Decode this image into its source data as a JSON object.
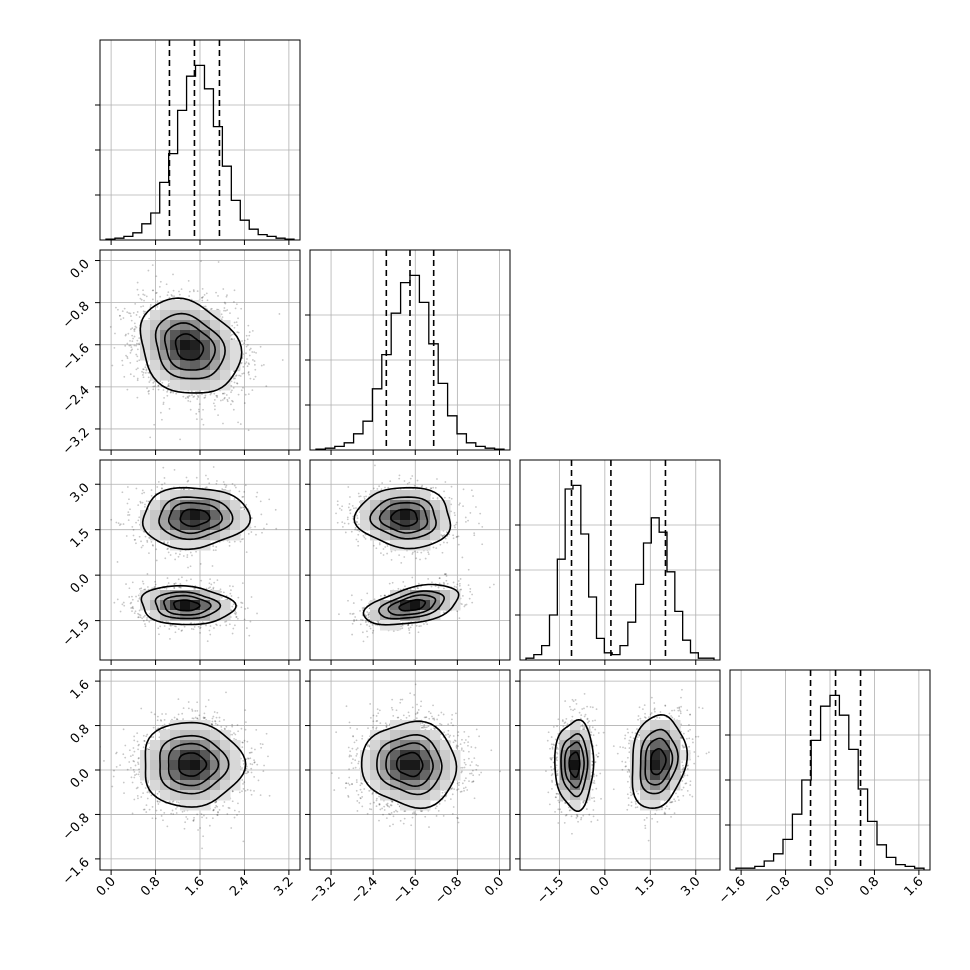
{
  "chart_data": {
    "type": "corner",
    "n_params": 4,
    "params": [
      {
        "range": [
          -0.2,
          3.4
        ],
        "ticks": [
          0.0,
          0.8,
          1.6,
          2.4,
          3.2
        ],
        "tick_labels": [
          "0.0",
          "0.8",
          "1.6",
          "2.4",
          "3.2"
        ],
        "quantiles": [
          1.05,
          1.5,
          1.95
        ],
        "hist": [
          0.5,
          1,
          2,
          4,
          9,
          15,
          32,
          48,
          72,
          91,
          97,
          84,
          63,
          41,
          22,
          11,
          6,
          3,
          2,
          1,
          0.5
        ]
      },
      {
        "range": [
          -3.6,
          0.2
        ],
        "ticks": [
          -3.2,
          -2.4,
          -1.6,
          -0.8,
          0.0
        ],
        "tick_labels": [
          "−3.2",
          "−2.4",
          "−1.6",
          "−0.8",
          "0.0"
        ],
        "quantiles": [
          -2.15,
          -1.7,
          -1.25
        ],
        "hist": [
          0.5,
          1,
          2,
          4,
          9,
          16,
          34,
          53,
          76,
          93,
          97,
          82,
          59,
          37,
          19,
          9,
          4,
          2,
          1,
          0.5
        ]
      },
      {
        "range": [
          -2.8,
          3.8
        ],
        "ticks": [
          -1.5,
          0.0,
          1.5,
          3.0
        ],
        "tick_labels": [
          "−1.5",
          "0.0",
          "1.5",
          "3.0"
        ],
        "quantiles": [
          -1.1,
          0.2,
          2.0
        ],
        "hist": [
          1,
          3,
          8,
          25,
          56,
          95,
          97,
          70,
          35,
          12,
          4,
          3,
          8,
          21,
          42,
          65,
          79,
          71,
          49,
          27,
          11,
          4,
          1,
          1
        ]
      },
      {
        "range": [
          -1.8,
          1.8
        ],
        "ticks": [
          -1.6,
          -0.8,
          0.0,
          0.8,
          1.6
        ],
        "tick_labels": [
          "−1.6",
          "−0.8",
          "0.0",
          "0.8",
          "1.6"
        ],
        "quantiles": [
          -0.35,
          0.1,
          0.55
        ],
        "hist": [
          1,
          1,
          2,
          5,
          9,
          17,
          31,
          50,
          72,
          91,
          97,
          86,
          67,
          45,
          27,
          14,
          7,
          3,
          2,
          1
        ]
      }
    ],
    "pairs": [
      {
        "row": 1,
        "col": 0,
        "modes": [
          {
            "mx": 1.4,
            "my": -1.65,
            "sx": 0.45,
            "sy": 0.45,
            "rho": -0.2,
            "w": 1
          }
        ]
      },
      {
        "row": 2,
        "col": 0,
        "modes": [
          {
            "mx": 1.5,
            "my": 1.9,
            "sx": 0.48,
            "sy": 0.5,
            "rho": 0.05,
            "w": 0.5
          },
          {
            "mx": 1.35,
            "my": -1.0,
            "sx": 0.42,
            "sy": 0.32,
            "rho": -0.1,
            "w": 0.5
          }
        ]
      },
      {
        "row": 2,
        "col": 1,
        "modes": [
          {
            "mx": -1.8,
            "my": 1.9,
            "sx": 0.45,
            "sy": 0.5,
            "rho": -0.05,
            "w": 0.5
          },
          {
            "mx": -1.65,
            "my": -1.0,
            "sx": 0.45,
            "sy": 0.33,
            "rho": 0.45,
            "w": 0.5
          }
        ]
      },
      {
        "row": 3,
        "col": 0,
        "modes": [
          {
            "mx": 1.45,
            "my": 0.1,
            "sx": 0.45,
            "sy": 0.38,
            "rho": 0.0,
            "w": 1
          }
        ]
      },
      {
        "row": 3,
        "col": 1,
        "modes": [
          {
            "mx": -1.7,
            "my": 0.1,
            "sx": 0.45,
            "sy": 0.38,
            "rho": -0.05,
            "w": 1
          }
        ]
      },
      {
        "row": 3,
        "col": 2,
        "modes": [
          {
            "mx": -1.0,
            "my": 0.1,
            "sx": 0.32,
            "sy": 0.4,
            "rho": 0.0,
            "w": 0.5
          },
          {
            "mx": 1.75,
            "my": 0.15,
            "sx": 0.45,
            "sy": 0.42,
            "rho": 0.15,
            "w": 0.5
          }
        ]
      }
    ],
    "contour_levels": [
      0.135,
      0.39,
      0.61,
      0.86
    ],
    "grid": true
  }
}
